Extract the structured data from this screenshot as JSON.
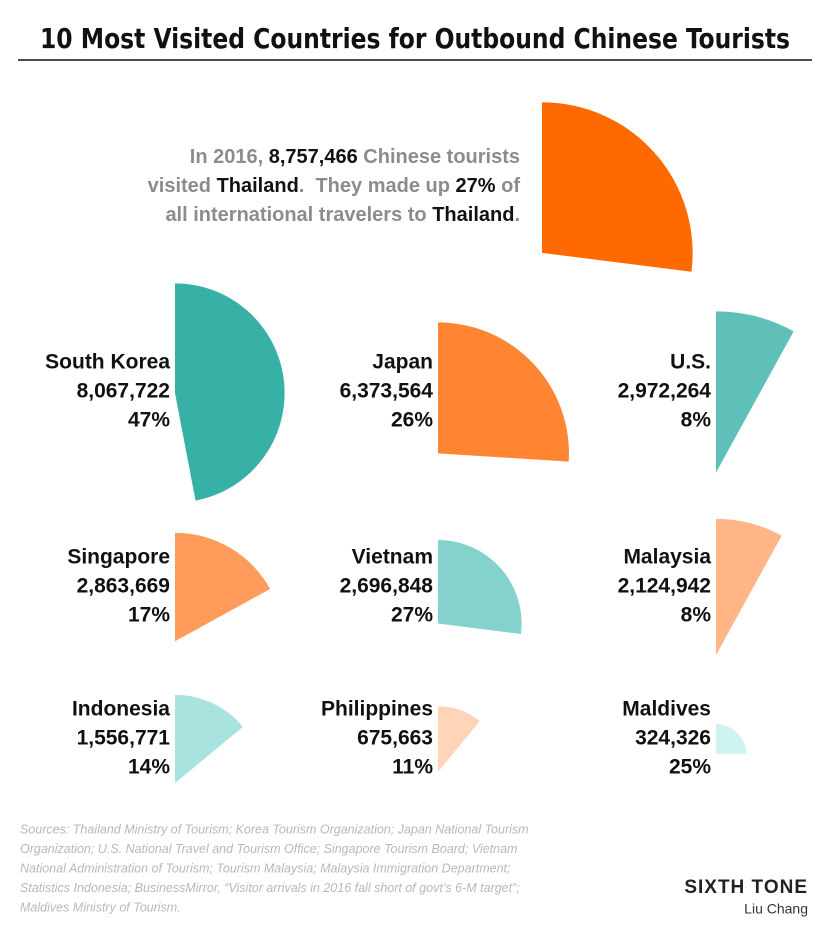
{
  "chart_data": {
    "type": "wedge",
    "title": "10 Most Visited Countries for Outbound Chinese Tourists",
    "categories": [
      "Thailand",
      "South Korea",
      "Japan",
      "U.S.",
      "Singapore",
      "Vietnam",
      "Malaysia",
      "Indonesia",
      "Philippines",
      "Maldives"
    ],
    "values": [
      8757466,
      8067722,
      6373564,
      2972264,
      2863669,
      2696848,
      2124942,
      1556771,
      675663,
      324326
    ],
    "value_labels": [
      "8,757,466",
      "8,067,722",
      "6,373,564",
      "2,972,264",
      "2,863,669",
      "2,696,848",
      "2,124,942",
      "1,556,771",
      "675,663",
      "324,326"
    ],
    "shares": [
      27,
      47,
      26,
      8,
      17,
      27,
      8,
      14,
      11,
      25
    ],
    "share_labels": [
      "27%",
      "47%",
      "26%",
      "8%",
      "17%",
      "27%",
      "8%",
      "14%",
      "11%",
      "25%"
    ],
    "colors": [
      "#ff6a00",
      "#37b0a6",
      "#ff8533",
      "#5ec0b8",
      "#ff9c5c",
      "#83d3cc",
      "#ffb586",
      "#a8e3df",
      "#ffd4b8",
      "#cff3f1"
    ],
    "annotation": [
      "In 2016,",
      "Chinese tourists",
      "visited",
      ".  They made up",
      "of",
      "all international travelers to",
      "."
    ],
    "source_lines": [
      "Sources: Thailand Ministry of Tourism; Korea Tourism Organization; Japan National Tourism",
      "Organization; U.S. National Travel and Tourism Office; Singapore Tourism Board; Vietnam",
      "National Administration of Tourism; Tourism Malaysia; Malaysia Immigration Department;",
      "Statistics Indonesia; BusinessMirror, “Visitor arrivals in 2016 fall short of govt’s 6-M target”;",
      "Maldives Ministry of Tourism."
    ],
    "brand": "SIXTH TONE",
    "author": "Liu Chang"
  }
}
